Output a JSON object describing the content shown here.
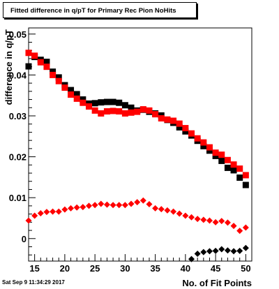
{
  "page": {
    "timestamp": "Sat Sep  9 11:34:29 2017"
  },
  "chart_data": {
    "type": "scatter",
    "title": "Fitted difference in q/pT for Primary Rec Pion NoHits",
    "xlabel": "No. of Fit Points",
    "ylabel": "difference in q/pT",
    "xlim": [
      14,
      51
    ],
    "ylim": [
      -0.0055,
      0.0515
    ],
    "x_ticks": [
      15,
      20,
      25,
      30,
      35,
      40,
      45,
      50
    ],
    "y_ticks": [
      0,
      0.01,
      0.02,
      0.03,
      0.04,
      0.05
    ],
    "y_tick_labels": [
      "0",
      "0.01",
      "0.02",
      "0.03",
      "0.04",
      "0.05"
    ],
    "grid": false,
    "series": [
      {
        "marker": "square",
        "color": "#000000",
        "x": [
          14,
          15,
          16,
          17,
          18,
          19,
          20,
          21,
          22,
          23,
          24,
          25,
          26,
          27,
          28,
          29,
          30,
          31,
          32,
          33,
          34,
          35,
          36,
          37,
          38,
          39,
          40,
          41,
          42,
          43,
          44,
          45,
          46,
          47,
          48,
          49,
          50
        ],
        "y": [
          0.0421,
          0.0444,
          0.0437,
          0.0432,
          0.0408,
          0.0394,
          0.0375,
          0.0363,
          0.0353,
          0.034,
          0.033,
          0.0331,
          0.0333,
          0.0334,
          0.0334,
          0.0332,
          0.0326,
          0.032,
          0.0313,
          0.0315,
          0.031,
          0.0306,
          0.0301,
          0.029,
          0.0283,
          0.0272,
          0.0262,
          0.0252,
          0.0239,
          0.0226,
          0.0215,
          0.0202,
          0.019,
          0.0173,
          0.0167,
          0.0149,
          0.0131
        ]
      },
      {
        "marker": "square",
        "color": "#ff0000",
        "x": [
          14,
          15,
          16,
          17,
          18,
          19,
          20,
          21,
          22,
          23,
          24,
          25,
          26,
          27,
          28,
          29,
          30,
          31,
          32,
          33,
          34,
          35,
          36,
          37,
          38,
          39,
          40,
          41,
          42,
          43,
          44,
          45,
          46,
          47,
          48,
          49,
          50
        ],
        "y": [
          0.0454,
          0.0447,
          0.0431,
          0.042,
          0.04,
          0.0385,
          0.0369,
          0.0352,
          0.0342,
          0.0332,
          0.0323,
          0.0313,
          0.0306,
          0.0311,
          0.0312,
          0.0311,
          0.0306,
          0.0308,
          0.031,
          0.0316,
          0.0313,
          0.0304,
          0.0294,
          0.0291,
          0.0288,
          0.0281,
          0.027,
          0.0257,
          0.0245,
          0.0235,
          0.0223,
          0.021,
          0.0205,
          0.0192,
          0.0181,
          0.0171,
          0.0155
        ]
      },
      {
        "marker": "diamond",
        "color": "#ff0000",
        "x": [
          14,
          15,
          16,
          17,
          18,
          19,
          20,
          21,
          22,
          23,
          24,
          25,
          26,
          27,
          28,
          29,
          30,
          31,
          32,
          33,
          34,
          35,
          36,
          37,
          38,
          39,
          40,
          41,
          42,
          43,
          44,
          45,
          46,
          47,
          48,
          49,
          50
        ],
        "y": [
          0.0044,
          0.0056,
          0.0062,
          0.0065,
          0.0066,
          0.0066,
          0.0071,
          0.0074,
          0.0076,
          0.0077,
          0.008,
          0.0082,
          0.0085,
          0.0083,
          0.0082,
          0.0082,
          0.0082,
          0.0085,
          0.0089,
          0.0093,
          0.0084,
          0.0074,
          0.0072,
          0.0069,
          0.0066,
          0.0061,
          0.0056,
          0.0052,
          0.0048,
          0.0046,
          0.0044,
          0.004,
          0.0043,
          0.0039,
          0.0031,
          0.0019,
          0.0027
        ]
      },
      {
        "marker": "diamond",
        "color": "#000000",
        "x": [
          41,
          42,
          43,
          44,
          45,
          46,
          47,
          48,
          49,
          50
        ],
        "y": [
          -0.005,
          -0.0037,
          -0.0033,
          -0.0031,
          -0.003,
          -0.0026,
          -0.0029,
          -0.0031,
          -0.003,
          -0.0023
        ]
      }
    ]
  }
}
